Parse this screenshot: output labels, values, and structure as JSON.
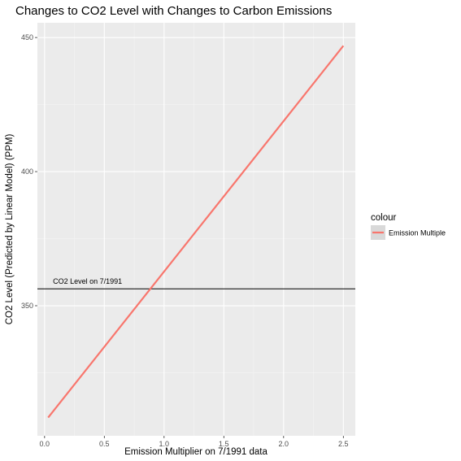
{
  "chart_data": {
    "type": "line",
    "title": "Changes to CO2 Level with Changes to Carbon Emissions",
    "xlabel": "Emission Multiplier on 7/1991 data",
    "ylabel": "CO2 Level (Predicted by Linear Model) (PPM)",
    "xlim": [
      -0.06,
      2.6
    ],
    "ylim": [
      301.5,
      455.5
    ],
    "x_ticks": [
      0.0,
      0.5,
      1.0,
      1.5,
      2.0,
      2.5
    ],
    "x_tick_labels": [
      "0.0",
      "0.5",
      "1.0",
      "1.5",
      "2.0",
      "2.5"
    ],
    "y_ticks": [
      350,
      400,
      450
    ],
    "y_tick_labels": [
      "350",
      "400",
      "450"
    ],
    "grid": true,
    "legend": {
      "title": "colour",
      "placement": "right",
      "entries": [
        "Emission Multiple"
      ]
    },
    "series": [
      {
        "name": "Emission Multiple",
        "color": "#F8766D",
        "x": [
          0.03,
          2.5
        ],
        "y": [
          308.3,
          446.9
        ]
      }
    ],
    "hline": {
      "y": 356.3,
      "color": "#000000",
      "label": "CO2 Level on 7/1991"
    }
  },
  "colors": {
    "panel_background": "#EBEBEB",
    "grid_major": "#FFFFFF",
    "series": "#F8766D"
  }
}
